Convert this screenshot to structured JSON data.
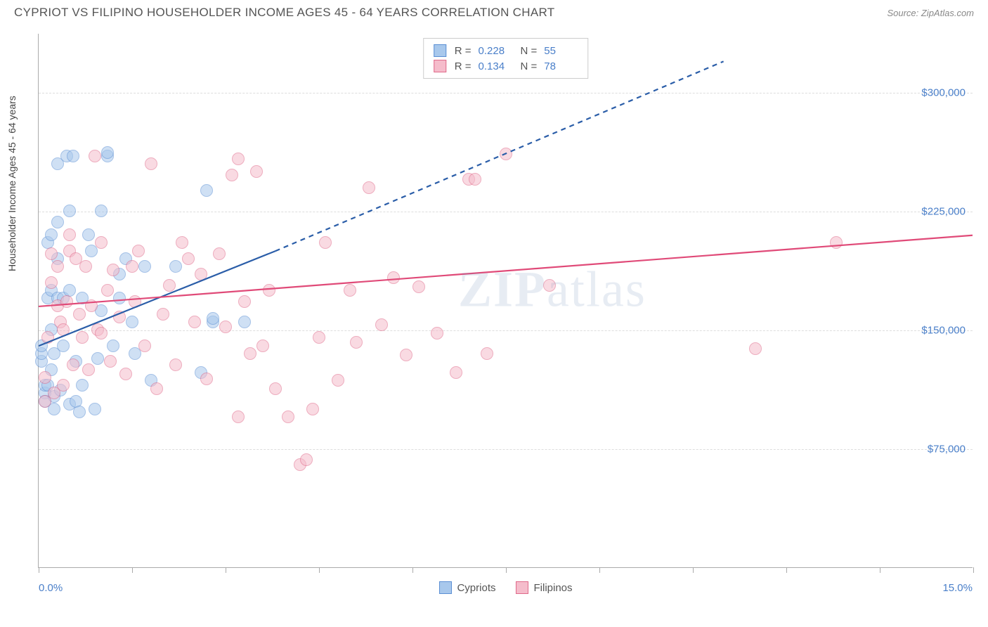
{
  "title": "CYPRIOT VS FILIPINO HOUSEHOLDER INCOME AGES 45 - 64 YEARS CORRELATION CHART",
  "source": "Source: ZipAtlas.com",
  "watermark_prefix": "ZIP",
  "watermark_suffix": "atlas",
  "ylabel": "Householder Income Ages 45 - 64 years",
  "chart": {
    "type": "scatter",
    "xlim": [
      0,
      15
    ],
    "ylim": [
      0,
      337500
    ],
    "x_min_label": "0.0%",
    "x_max_label": "15.0%",
    "xtick_positions": [
      0,
      1.5,
      3.0,
      4.5,
      6.0,
      7.5,
      9.0,
      10.5,
      12.0,
      13.5,
      15.0
    ],
    "y_gridlines": [
      75000,
      150000,
      225000,
      300000
    ],
    "y_tick_labels": [
      "$75,000",
      "$150,000",
      "$225,000",
      "$300,000"
    ],
    "background_color": "#ffffff",
    "grid_color": "#dddddd",
    "axis_color": "#aaaaaa",
    "tick_label_color": "#4a7fc9",
    "point_radius": 9,
    "point_opacity": 0.55,
    "point_border_width": 1.2
  },
  "series": [
    {
      "name": "Cypriots",
      "fill_color": "#a8c8ec",
      "border_color": "#5b8fd4",
      "r_label": "R  =",
      "r_value": "0.228",
      "n_label": "N  =",
      "n_value": "55",
      "trend": {
        "line_color": "#2a5da8",
        "line_width": 2.2,
        "solid": {
          "x1": 0,
          "y1": 140000,
          "x2": 3.8,
          "y2": 200000
        },
        "dashed": {
          "x1": 3.8,
          "y1": 200000,
          "x2": 11.0,
          "y2": 320000
        }
      },
      "points": [
        [
          0.05,
          130000
        ],
        [
          0.05,
          135000
        ],
        [
          0.05,
          140000
        ],
        [
          0.1,
          110000
        ],
        [
          0.1,
          115000
        ],
        [
          0.1,
          105000
        ],
        [
          0.15,
          115000
        ],
        [
          0.15,
          170000
        ],
        [
          0.15,
          205000
        ],
        [
          0.2,
          125000
        ],
        [
          0.2,
          150000
        ],
        [
          0.2,
          175000
        ],
        [
          0.2,
          210000
        ],
        [
          0.25,
          100000
        ],
        [
          0.25,
          108000
        ],
        [
          0.25,
          135000
        ],
        [
          0.3,
          170000
        ],
        [
          0.3,
          195000
        ],
        [
          0.3,
          218000
        ],
        [
          0.3,
          255000
        ],
        [
          0.35,
          112000
        ],
        [
          0.4,
          170000
        ],
        [
          0.4,
          140000
        ],
        [
          0.45,
          260000
        ],
        [
          0.5,
          103000
        ],
        [
          0.5,
          175000
        ],
        [
          0.5,
          225000
        ],
        [
          0.55,
          260000
        ],
        [
          0.6,
          105000
        ],
        [
          0.6,
          130000
        ],
        [
          0.65,
          98000
        ],
        [
          0.7,
          115000
        ],
        [
          0.7,
          170000
        ],
        [
          0.8,
          210000
        ],
        [
          0.85,
          200000
        ],
        [
          0.9,
          100000
        ],
        [
          0.95,
          132000
        ],
        [
          1.0,
          162000
        ],
        [
          1.0,
          225000
        ],
        [
          1.1,
          260000
        ],
        [
          1.1,
          262000
        ],
        [
          1.2,
          140000
        ],
        [
          1.3,
          185000
        ],
        [
          1.3,
          170000
        ],
        [
          1.4,
          195000
        ],
        [
          1.5,
          155000
        ],
        [
          1.55,
          135000
        ],
        [
          1.7,
          190000
        ],
        [
          1.8,
          118000
        ],
        [
          2.2,
          190000
        ],
        [
          2.6,
          123000
        ],
        [
          2.7,
          238000
        ],
        [
          2.8,
          155000
        ],
        [
          2.8,
          157000
        ],
        [
          3.3,
          155000
        ]
      ]
    },
    {
      "name": "Filipinos",
      "fill_color": "#f5bccb",
      "border_color": "#e06a8a",
      "r_label": "R  =",
      "r_value": "0.134",
      "n_label": "N  =",
      "n_value": "78",
      "trend": {
        "line_color": "#e04a78",
        "line_width": 2.2,
        "solid": {
          "x1": 0,
          "y1": 165000,
          "x2": 15.0,
          "y2": 210000
        }
      },
      "points": [
        [
          0.1,
          120000
        ],
        [
          0.1,
          105000
        ],
        [
          0.15,
          145000
        ],
        [
          0.2,
          180000
        ],
        [
          0.2,
          198000
        ],
        [
          0.25,
          110000
        ],
        [
          0.3,
          190000
        ],
        [
          0.3,
          165000
        ],
        [
          0.35,
          155000
        ],
        [
          0.4,
          115000
        ],
        [
          0.4,
          150000
        ],
        [
          0.45,
          168000
        ],
        [
          0.5,
          200000
        ],
        [
          0.5,
          210000
        ],
        [
          0.55,
          128000
        ],
        [
          0.6,
          195000
        ],
        [
          0.65,
          160000
        ],
        [
          0.7,
          145000
        ],
        [
          0.75,
          190000
        ],
        [
          0.8,
          125000
        ],
        [
          0.85,
          165000
        ],
        [
          0.9,
          260000
        ],
        [
          0.95,
          150000
        ],
        [
          1.0,
          148000
        ],
        [
          1.0,
          205000
        ],
        [
          1.1,
          175000
        ],
        [
          1.15,
          130000
        ],
        [
          1.2,
          188000
        ],
        [
          1.3,
          158000
        ],
        [
          1.4,
          122000
        ],
        [
          1.5,
          190000
        ],
        [
          1.55,
          168000
        ],
        [
          1.6,
          200000
        ],
        [
          1.7,
          140000
        ],
        [
          1.8,
          255000
        ],
        [
          1.9,
          113000
        ],
        [
          2.0,
          160000
        ],
        [
          2.1,
          178000
        ],
        [
          2.2,
          128000
        ],
        [
          2.3,
          205000
        ],
        [
          2.4,
          195000
        ],
        [
          2.5,
          155000
        ],
        [
          2.6,
          185000
        ],
        [
          2.7,
          119000
        ],
        [
          2.9,
          198000
        ],
        [
          3.0,
          152000
        ],
        [
          3.1,
          248000
        ],
        [
          3.2,
          95000
        ],
        [
          3.2,
          258000
        ],
        [
          3.3,
          168000
        ],
        [
          3.4,
          135000
        ],
        [
          3.5,
          250000
        ],
        [
          3.6,
          140000
        ],
        [
          3.7,
          175000
        ],
        [
          3.8,
          113000
        ],
        [
          4.0,
          95000
        ],
        [
          4.2,
          65000
        ],
        [
          4.3,
          68000
        ],
        [
          4.4,
          100000
        ],
        [
          4.5,
          145000
        ],
        [
          4.6,
          205000
        ],
        [
          4.8,
          118000
        ],
        [
          5.0,
          175000
        ],
        [
          5.1,
          142000
        ],
        [
          5.3,
          240000
        ],
        [
          5.5,
          153000
        ],
        [
          5.7,
          183000
        ],
        [
          5.9,
          134000
        ],
        [
          6.1,
          177000
        ],
        [
          6.4,
          148000
        ],
        [
          6.7,
          123000
        ],
        [
          6.9,
          245000
        ],
        [
          7.0,
          245000
        ],
        [
          7.2,
          135000
        ],
        [
          7.5,
          261000
        ],
        [
          8.2,
          178000
        ],
        [
          11.5,
          138000
        ],
        [
          12.8,
          205000
        ]
      ]
    }
  ]
}
